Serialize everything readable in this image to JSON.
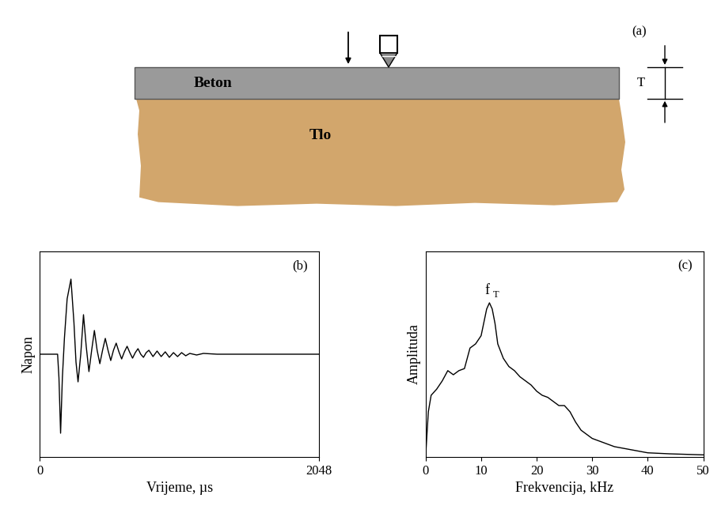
{
  "diagram": {
    "panel_label": "(a)",
    "layers": [
      {
        "label": "Beton"
      },
      {
        "label": "Tlo"
      }
    ],
    "thickness_label": "T"
  },
  "chart_data": [
    {
      "type": "line",
      "panel_label": "(b)",
      "x_label": "Vrijeme, µs",
      "y_label": "Napon",
      "color": "#000000",
      "x": [
        0,
        130,
        140,
        152,
        165,
        180,
        200,
        228,
        250,
        265,
        280,
        300,
        320,
        340,
        360,
        380,
        400,
        420,
        440,
        460,
        480,
        500,
        520,
        540,
        560,
        580,
        600,
        620,
        640,
        660,
        680,
        700,
        720,
        740,
        760,
        780,
        800,
        830,
        860,
        890,
        920,
        950,
        980,
        1010,
        1040,
        1070,
        1100,
        1150,
        1200,
        1300,
        2048
      ],
      "values": [
        0,
        0,
        -0.3,
        -1.0,
        -0.3,
        0.2,
        0.7,
        0.95,
        0.4,
        -0.1,
        -0.35,
        0.0,
        0.5,
        0.1,
        -0.22,
        0.05,
        0.3,
        0.05,
        -0.12,
        0.05,
        0.2,
        0.05,
        -0.08,
        0.05,
        0.14,
        0.03,
        -0.06,
        0.03,
        0.1,
        0.02,
        -0.05,
        0.02,
        0.07,
        0.0,
        -0.04,
        0.02,
        0.05,
        -0.03,
        0.04,
        -0.03,
        0.03,
        -0.04,
        0.02,
        -0.03,
        0.02,
        -0.02,
        0.01,
        -0.01,
        0.01,
        0,
        0
      ],
      "xlim": [
        0,
        2048
      ],
      "ylim": [
        -1.3,
        1.3
      ],
      "xticks": [
        0,
        2048
      ],
      "tick_labels": "x"
    },
    {
      "type": "line",
      "panel_label": "(c)",
      "x_label": "Frekvencija, kHz",
      "y_label": "Amplituda",
      "color": "#000000",
      "x": [
        0,
        0.5,
        1,
        2,
        3,
        4,
        5,
        6,
        7,
        8,
        9,
        10,
        11,
        11.5,
        12,
        12.5,
        13,
        14,
        15,
        16,
        17,
        18,
        19,
        20,
        21,
        22,
        23,
        24,
        25,
        26,
        27,
        28,
        29,
        30,
        32,
        34,
        36,
        38,
        40,
        44,
        50
      ],
      "values": [
        0,
        0.22,
        0.3,
        0.33,
        0.37,
        0.42,
        0.4,
        0.42,
        0.43,
        0.53,
        0.55,
        0.59,
        0.72,
        0.75,
        0.72,
        0.65,
        0.55,
        0.48,
        0.44,
        0.42,
        0.39,
        0.37,
        0.35,
        0.32,
        0.3,
        0.29,
        0.27,
        0.25,
        0.25,
        0.22,
        0.17,
        0.13,
        0.11,
        0.09,
        0.07,
        0.05,
        0.04,
        0.03,
        0.02,
        0.015,
        0.01
      ],
      "xlim": [
        0,
        50
      ],
      "ylim": [
        0,
        1
      ],
      "xticks": [
        0,
        10,
        20,
        30,
        40,
        50
      ],
      "tick_labels": "x",
      "annotation": {
        "text": "f",
        "subscript": "T",
        "x": 11.5
      }
    }
  ]
}
